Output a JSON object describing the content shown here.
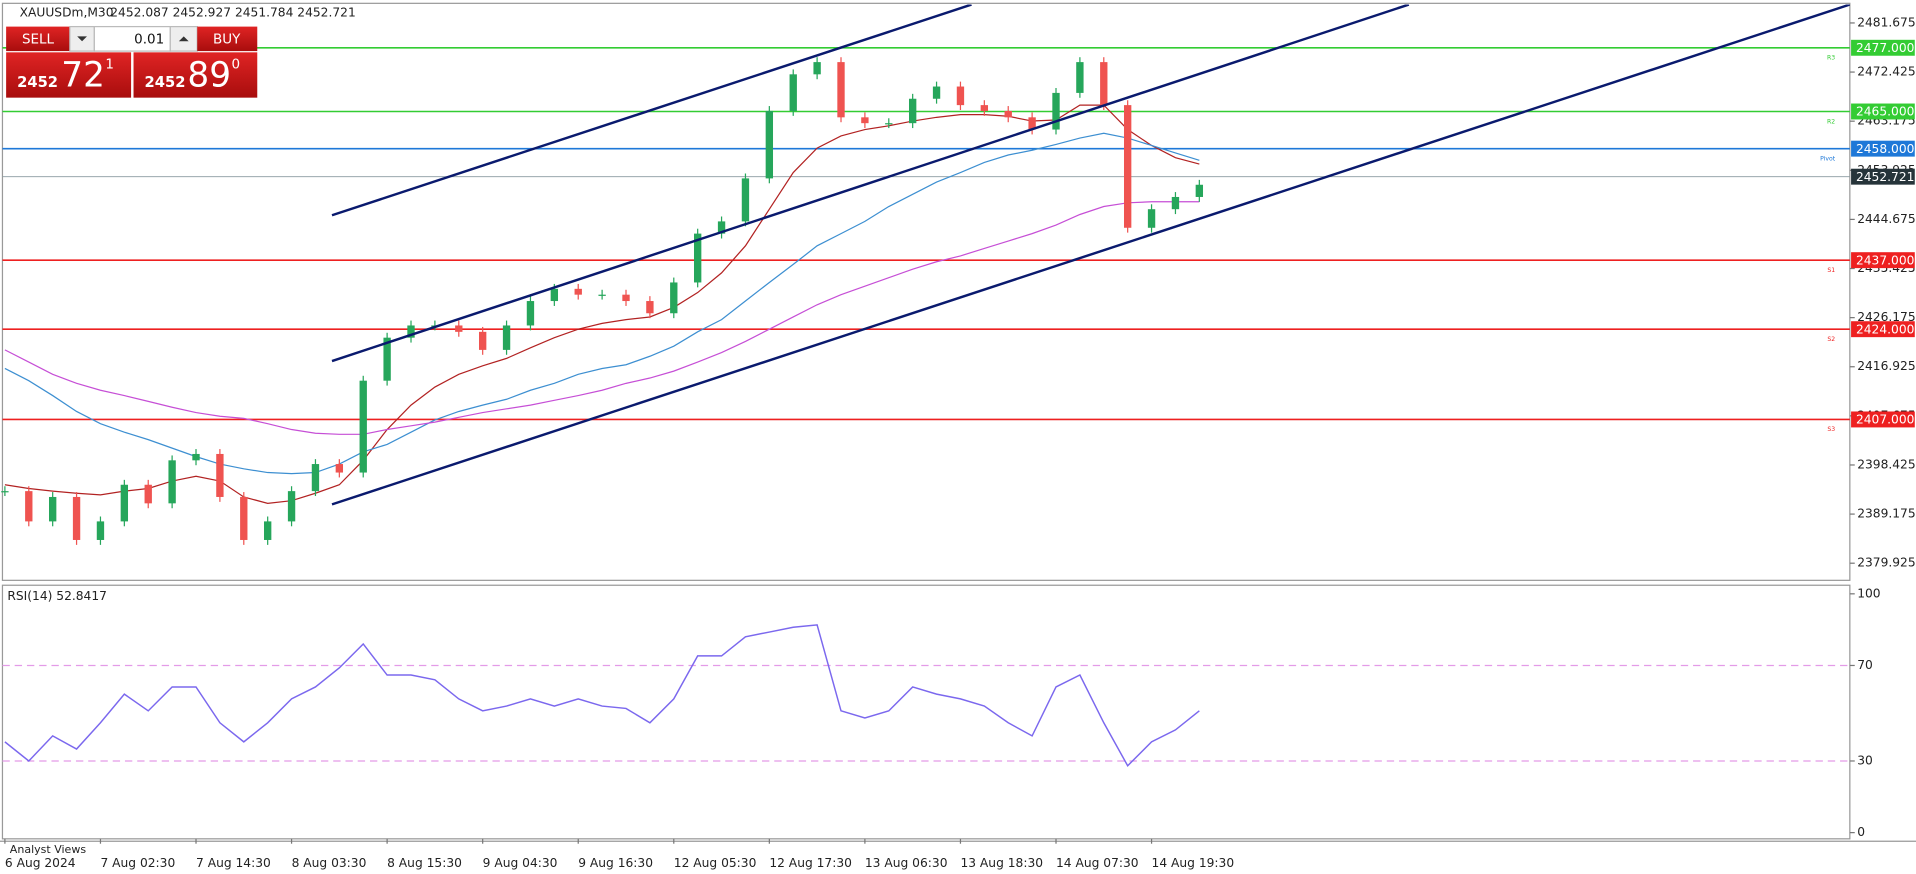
{
  "chart_data": [
    {
      "type": "line",
      "title": "XAUUSDm,M30",
      "subtitle": "2452.087 2452.927 2451.784 2452.721",
      "categories": [
        "6 Aug 2024",
        null,
        null,
        null,
        "7 Aug 02:30",
        null,
        null,
        null,
        "7 Aug 14:30",
        null,
        null,
        null,
        "8 Aug 03:30",
        null,
        null,
        null,
        "8 Aug 15:30",
        null,
        null,
        null,
        "9 Aug 04:30",
        null,
        null,
        null,
        "9 Aug 16:30",
        null,
        null,
        null,
        "12 Aug 05:30",
        null,
        null,
        null,
        "12 Aug 17:30",
        null,
        null,
        null,
        "13 Aug 06:30",
        null,
        null,
        null,
        "13 Aug 18:30",
        null,
        null,
        null,
        "14 Aug 07:30",
        null,
        null,
        null,
        "14 Aug 19:30",
        null,
        null
      ],
      "values": [
        2393.5,
        2387.8,
        2392.4,
        2384.3,
        2387.8,
        2394.7,
        2391.2,
        2399.3,
        2400.5,
        2392.4,
        2384.3,
        2387.8,
        2393.5,
        2398.6,
        2397,
        2414.3,
        2422.4,
        2424.7,
        2424.7,
        2423.5,
        2420.1,
        2424.7,
        2429.3,
        2431.6,
        2430.5,
        2430.5,
        2429.3,
        2427,
        2432.8,
        2442,
        2444.3,
        2452.4,
        2465.1,
        2472,
        2474.3,
        2463.9,
        2462.8,
        2462.8,
        2467.4,
        2469.7,
        2466.2,
        2465.1,
        2463.9,
        2461.6,
        2468.5,
        2474.3,
        2466.2,
        2443.1,
        2446.6,
        2448.9,
        2451.2
      ],
      "up_color": "#26a65b",
      "down_color": "#ef5350",
      "overlays": [
        {
          "color": "#b22222",
          "values": [
            2394.7,
            2394.0,
            2393.5,
            2393.1,
            2392.8,
            2393.5,
            2394.0,
            2395.4,
            2396.3,
            2395.4,
            2392.4,
            2391.2,
            2391.7,
            2393.1,
            2394.7,
            2399.3,
            2405.1,
            2409.7,
            2413.1,
            2415.5,
            2417.1,
            2418.5,
            2420.5,
            2422.4,
            2424.0,
            2425.1,
            2425.8,
            2426.3,
            2428.1,
            2430.9,
            2434.6,
            2439.7,
            2446.6,
            2453.5,
            2458.1,
            2460.4,
            2461.6,
            2462.3,
            2463.2,
            2463.9,
            2464.4,
            2464.4,
            2464.1,
            2463.2,
            2463.4,
            2466.2,
            2466.2,
            2461.6,
            2458.6,
            2456.3,
            2455.1
          ]
        },
        {
          "color": "#3d8fd1",
          "values": [
            2416.6,
            2414.3,
            2411.5,
            2408.5,
            2406.2,
            2404.6,
            2403.2,
            2401.6,
            2400.0,
            2398.6,
            2397.7,
            2397.0,
            2396.8,
            2397.0,
            2398.6,
            2400.9,
            2402.3,
            2404.6,
            2406.9,
            2408.5,
            2409.7,
            2410.8,
            2412.5,
            2413.8,
            2415.5,
            2416.6,
            2417.3,
            2418.9,
            2420.8,
            2423.5,
            2425.8,
            2429.3,
            2432.8,
            2436.2,
            2439.7,
            2442.0,
            2444.3,
            2447.1,
            2449.4,
            2451.7,
            2453.5,
            2455.4,
            2456.8,
            2457.7,
            2458.8,
            2460.0,
            2460.9,
            2460.0,
            2458.6,
            2457.2,
            2455.8
          ]
        },
        {
          "color": "#c64fd6",
          "values": [
            2420.1,
            2417.8,
            2415.5,
            2413.8,
            2412.5,
            2411.5,
            2410.4,
            2409.3,
            2408.3,
            2407.6,
            2407.2,
            2406.2,
            2405.1,
            2404.4,
            2404.2,
            2404.2,
            2405.1,
            2405.8,
            2406.5,
            2407.4,
            2408.3,
            2409.0,
            2409.7,
            2410.6,
            2411.5,
            2412.5,
            2413.8,
            2414.8,
            2416.1,
            2417.8,
            2419.6,
            2421.7,
            2424.0,
            2426.3,
            2428.6,
            2430.5,
            2432.1,
            2433.7,
            2435.3,
            2436.7,
            2437.8,
            2439.2,
            2440.6,
            2442.0,
            2443.6,
            2445.6,
            2447.1,
            2447.8,
            2448.0,
            2448.0,
            2448.0
          ]
        }
      ],
      "ylim": [
        2376.93,
        2485.14
      ],
      "yticks": [
        2481.675,
        2472.425,
        2463.175,
        2453.925,
        2444.675,
        2435.425,
        2426.175,
        2416.925,
        2407.675,
        2398.425,
        2389.175,
        2379.925
      ],
      "levels": [
        {
          "value": 2477,
          "label": "2477.000",
          "tag": "R3",
          "color": "#33cc33"
        },
        {
          "value": 2465,
          "label": "2465.000",
          "tag": "R2",
          "color": "#33cc33"
        },
        {
          "value": 2458,
          "label": "2458.000",
          "tag": "Pivot",
          "color": "#1e78d8"
        },
        {
          "value": 2437,
          "label": "2437.000",
          "tag": "S1",
          "color": "#ee2020"
        },
        {
          "value": 2424,
          "label": "2424.000",
          "tag": "S2",
          "color": "#ee2020"
        },
        {
          "value": 2407,
          "label": "2407.000",
          "tag": "S3",
          "color": "#ee2020"
        }
      ],
      "last": {
        "value": 2452.721,
        "label": "2452.721"
      }
    },
    {
      "type": "line",
      "title": "RSI(14) 52.8417",
      "color": "#7b68ee",
      "values": [
        38,
        30,
        40.5,
        35,
        46,
        58,
        51,
        61,
        61,
        46,
        38,
        46,
        56,
        61,
        69,
        79,
        66,
        66,
        64,
        56,
        51,
        53,
        56,
        53,
        56,
        53,
        52,
        46,
        56,
        74,
        74,
        82,
        84,
        86,
        87,
        51,
        48,
        51,
        61,
        58,
        56,
        53,
        46,
        40.5,
        61,
        66,
        46,
        28,
        38,
        43,
        51
      ],
      "ylim": [
        -2.6,
        103.6
      ],
      "yticks": [
        0,
        30,
        70,
        100
      ],
      "levels": [
        30,
        70
      ],
      "level_color": "#e39be8"
    }
  ],
  "trade_panel": {
    "sell": "SELL",
    "buy": "BUY",
    "lot": "0.01",
    "sell_big": "2452",
    "sell_main": "72",
    "sell_sup": "1",
    "buy_big": "2452",
    "buy_main": "89",
    "buy_sup": "0"
  },
  "footer_tab": "Analyst Views"
}
